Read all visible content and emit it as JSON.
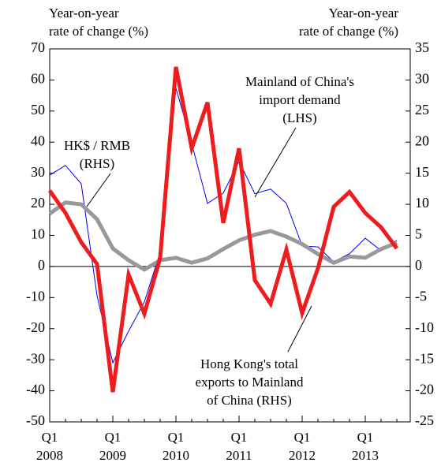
{
  "chart_data": {
    "type": "line",
    "ylabel": "Year-on-year\nrate of change (%)",
    "y2label": "Year-on-year\nrate of change (%)",
    "categories": [
      "Q1\n2008",
      null,
      null,
      null,
      "Q1\n2009",
      null,
      null,
      null,
      "Q1\n2010",
      null,
      null,
      null,
      "Q1\n2011",
      null,
      null,
      null,
      "Q1\n2012",
      null,
      null,
      null,
      "Q1\n2013",
      null,
      null
    ],
    "xlim": [
      0,
      22.85
    ],
    "ylim": [
      -50,
      70
    ],
    "yticks": [
      -50,
      -40,
      -30,
      -20,
      -10,
      0,
      10,
      20,
      30,
      40,
      50,
      60,
      70
    ],
    "y2lim": [
      -25,
      35
    ],
    "y2ticks": [
      -25,
      -20,
      -15,
      -10,
      -5,
      0,
      5,
      10,
      15,
      20,
      25,
      30,
      35
    ],
    "series": [
      {
        "name": "Mainland of China's\nimport demand\n(LHS)",
        "color": "#0000ee",
        "width": 1,
        "values": [
          29.4,
          32.5,
          26.6,
          -9.4,
          -31,
          -20.8,
          -11.4,
          4.6,
          57.4,
          39.6,
          20.3,
          23.6,
          33.8,
          23.4,
          24.9,
          20.3,
          6.6,
          6.3,
          1.5,
          4.1,
          9.1,
          5.1,
          8.4
        ]
      },
      {
        "name": "HK$ / RMB\n(RHS)",
        "color": "#999999",
        "width": 5,
        "axis": "y2",
        "values": [
          8.5,
          10.3,
          10,
          7.6,
          2.9,
          1,
          -0.5,
          1,
          1.4,
          0.6,
          1.3,
          2.8,
          4.2,
          5.1,
          5.7,
          4.8,
          3.6,
          2,
          0.6,
          1.6,
          1.4,
          2.8,
          3.8
        ]
      },
      {
        "name": "Hong Kong's total\nexports to Mainland\nof China (RHS)",
        "color": "#ee1c1c",
        "width": 5,
        "axis": "y2",
        "values": [
          12.2,
          8.6,
          3.9,
          0.4,
          -20.2,
          -1.3,
          -7.6,
          1.4,
          32.1,
          19,
          26.4,
          7,
          19,
          -2.2,
          -6,
          2.7,
          -7.5,
          -0.3,
          9.6,
          12,
          8.6,
          6.3,
          2.9
        ]
      }
    ]
  }
}
